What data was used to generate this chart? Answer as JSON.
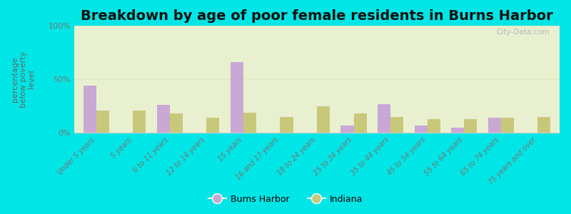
{
  "title": "Breakdown by age of poor female residents in Burns Harbor",
  "ylabel": "percentage\nbelow poverty\nlevel",
  "categories": [
    "Under 5 years",
    "5 years",
    "6 to 11 years",
    "12 to 14 years",
    "15 years",
    "16 and 17 years",
    "18 to 24 years",
    "25 to 34 years",
    "35 to 44 years",
    "45 to 54 years",
    "55 to 64 years",
    "65 to 74 years",
    "75 years and over"
  ],
  "burns_harbor": [
    44,
    0,
    26,
    0,
    66,
    0,
    0,
    7,
    27,
    7,
    5,
    14,
    0
  ],
  "indiana": [
    21,
    21,
    18,
    14,
    19,
    15,
    25,
    18,
    15,
    13,
    13,
    14,
    15
  ],
  "burns_harbor_color": "#c9a8d4",
  "indiana_color": "#c8c87a",
  "background_color": "#00e5e5",
  "plot_bg_color": "#e8f0d0",
  "ylim": [
    0,
    100
  ],
  "yticks": [
    0,
    50,
    100
  ],
  "ytick_labels": [
    "0%",
    "50%",
    "100%"
  ],
  "bar_width": 0.35,
  "title_fontsize": 14,
  "legend_labels": [
    "Burns Harbor",
    "Indiana"
  ],
  "watermark": "City-Data.com"
}
